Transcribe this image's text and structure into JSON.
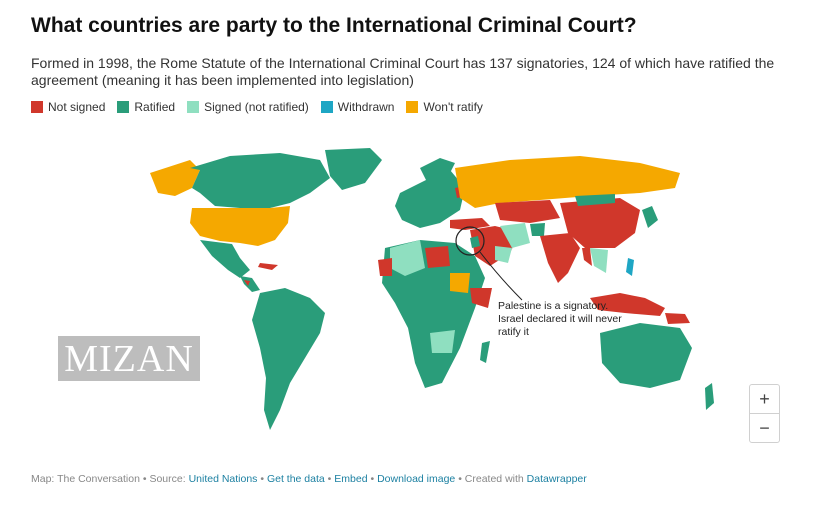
{
  "title": "What countries are party to the International Criminal Court?",
  "subtitle": "Formed in 1998, the Rome Statute of the International Criminal Court has 137 signatories, 124 of which have ratified the agreement (meaning it has been implemented into legislation)",
  "legend": [
    {
      "label": "Not signed",
      "color": "#d0372b"
    },
    {
      "label": "Ratified",
      "color": "#2a9d7a"
    },
    {
      "label": "Signed (not ratified)",
      "color": "#8fdfc0"
    },
    {
      "label": "Withdrawn",
      "color": "#1ea6c4"
    },
    {
      "label": "Won't ratify",
      "color": "#f5a800"
    }
  ],
  "annotation": "Palestine is a signatory. Israel declared it will never ratify it",
  "watermark": "MIZAN",
  "zoom": {
    "in": "+",
    "out": "−"
  },
  "footer": {
    "prefix": "Map: The Conversation • Source: ",
    "source": "United Nations",
    "sep1": " • ",
    "get_data": "Get the data",
    "sep2": " • ",
    "embed": "Embed",
    "sep3": " • ",
    "download": "Download image",
    "sep4": " • Created with ",
    "datawrapper": "Datawrapper"
  },
  "colors": {
    "not_signed": "#d0372b",
    "ratified": "#2a9d7a",
    "signed": "#8fdfc0",
    "withdrawn": "#1ea6c4",
    "wont_ratify": "#f5a800"
  }
}
